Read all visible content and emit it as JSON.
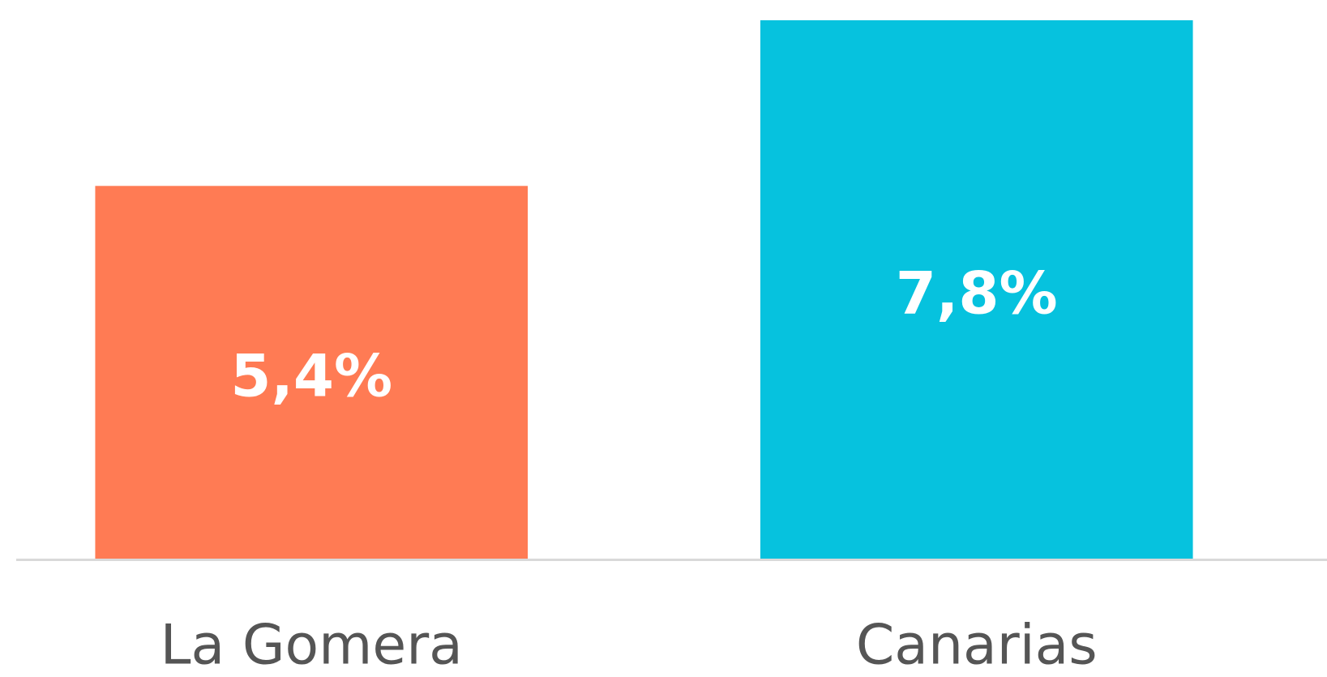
{
  "chart_data": {
    "type": "bar",
    "categories": [
      "La Gomera",
      "Canarias"
    ],
    "values": [
      5.4,
      7.8
    ],
    "value_labels": [
      "5,4%",
      "7,8%"
    ],
    "colors": [
      "#ff7b54",
      "#06c2de"
    ]
  }
}
